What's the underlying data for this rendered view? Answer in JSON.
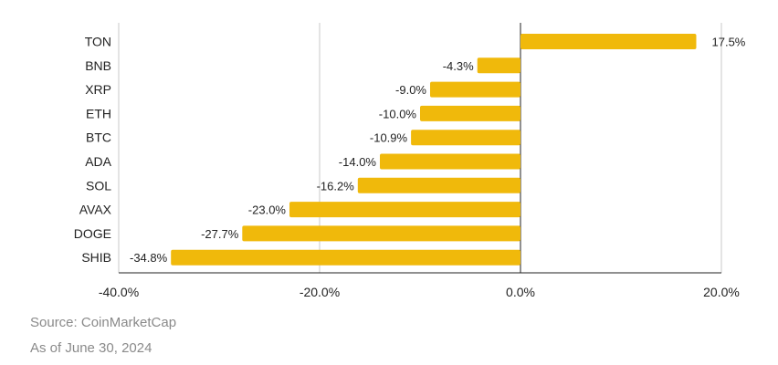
{
  "chart_data": {
    "type": "bar",
    "orientation": "horizontal",
    "categories": [
      "TON",
      "BNB",
      "XRP",
      "ETH",
      "BTC",
      "ADA",
      "SOL",
      "AVAX",
      "DOGE",
      "SHIB"
    ],
    "values": [
      17.5,
      -4.3,
      -9.0,
      -10.0,
      -10.9,
      -14.0,
      -16.2,
      -23.0,
      -27.7,
      -34.8
    ],
    "value_labels": [
      "17.5%",
      "-4.3%",
      "-9.0%",
      "-10.0%",
      "-10.9%",
      "-14.0%",
      "-16.2%",
      "-23.0%",
      "-27.7%",
      "-34.8%"
    ],
    "xlim": [
      -40,
      20
    ],
    "xticks": [
      -40,
      -20,
      0,
      20
    ],
    "xtick_labels": [
      "-40.0%",
      "-20.0%",
      "0.0%",
      "20.0%"
    ],
    "grid": "vertical",
    "legend": "none",
    "title": "",
    "xlabel": "",
    "ylabel": "",
    "bar_color": "#F0B90B"
  },
  "footnotes": {
    "source": "Source: CoinMarketCap",
    "date": "As of June 30, 2024"
  },
  "colors": {
    "bar": "#F0B90B",
    "grid": "#c8c8c8",
    "text": "#222222",
    "footnote": "#8a8a8a"
  }
}
